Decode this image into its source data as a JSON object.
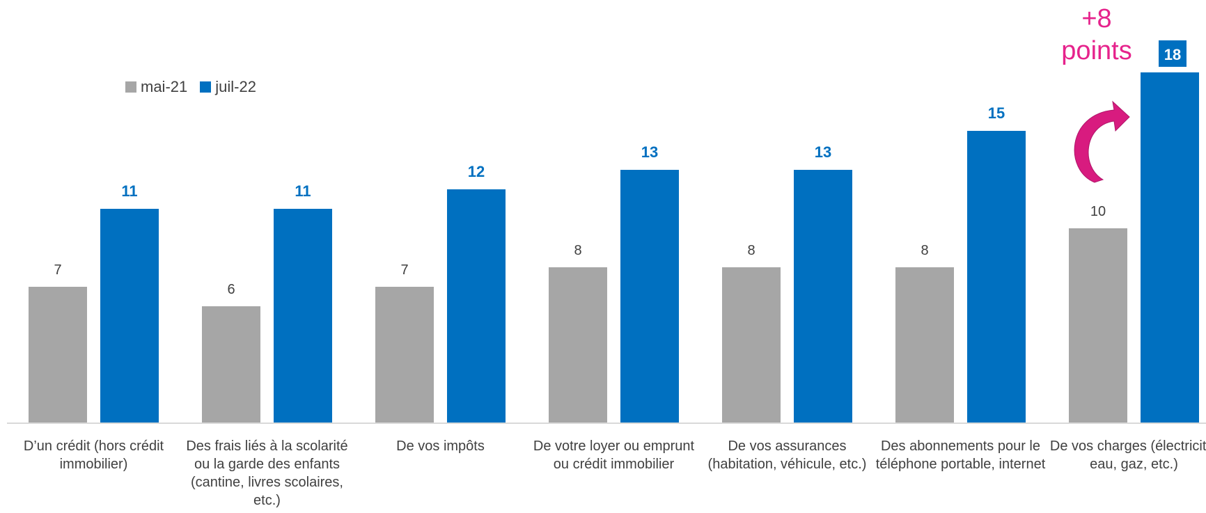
{
  "chart_data": {
    "type": "bar",
    "categories": [
      "D’un crédit (hors crédit immobilier)",
      "Des frais liés à la scolarité ou la garde des enfants (cantine, livres scolaires, etc.)",
      "De vos impôts",
      "De votre loyer ou emprunt ou crédit immobilier",
      "De vos assurances (habitation, véhicule, etc.)",
      "Des abonnements pour le téléphone portable, internet",
      "De vos charges (électricité, eau, gaz, etc.)"
    ],
    "series": [
      {
        "name": "mai-21",
        "values": [
          7,
          6,
          7,
          8,
          8,
          8,
          10
        ],
        "color": "#A6A6A6"
      },
      {
        "name": "juil-22",
        "values": [
          11,
          11,
          12,
          13,
          13,
          15,
          18
        ],
        "color": "#0070C0"
      }
    ],
    "ylim": [
      0,
      18
    ],
    "grid": false,
    "legend_position": "top-left",
    "annotation": {
      "text": "+8\npoints",
      "color": "#E6238C",
      "arrow_color": "#D81B7F"
    }
  }
}
